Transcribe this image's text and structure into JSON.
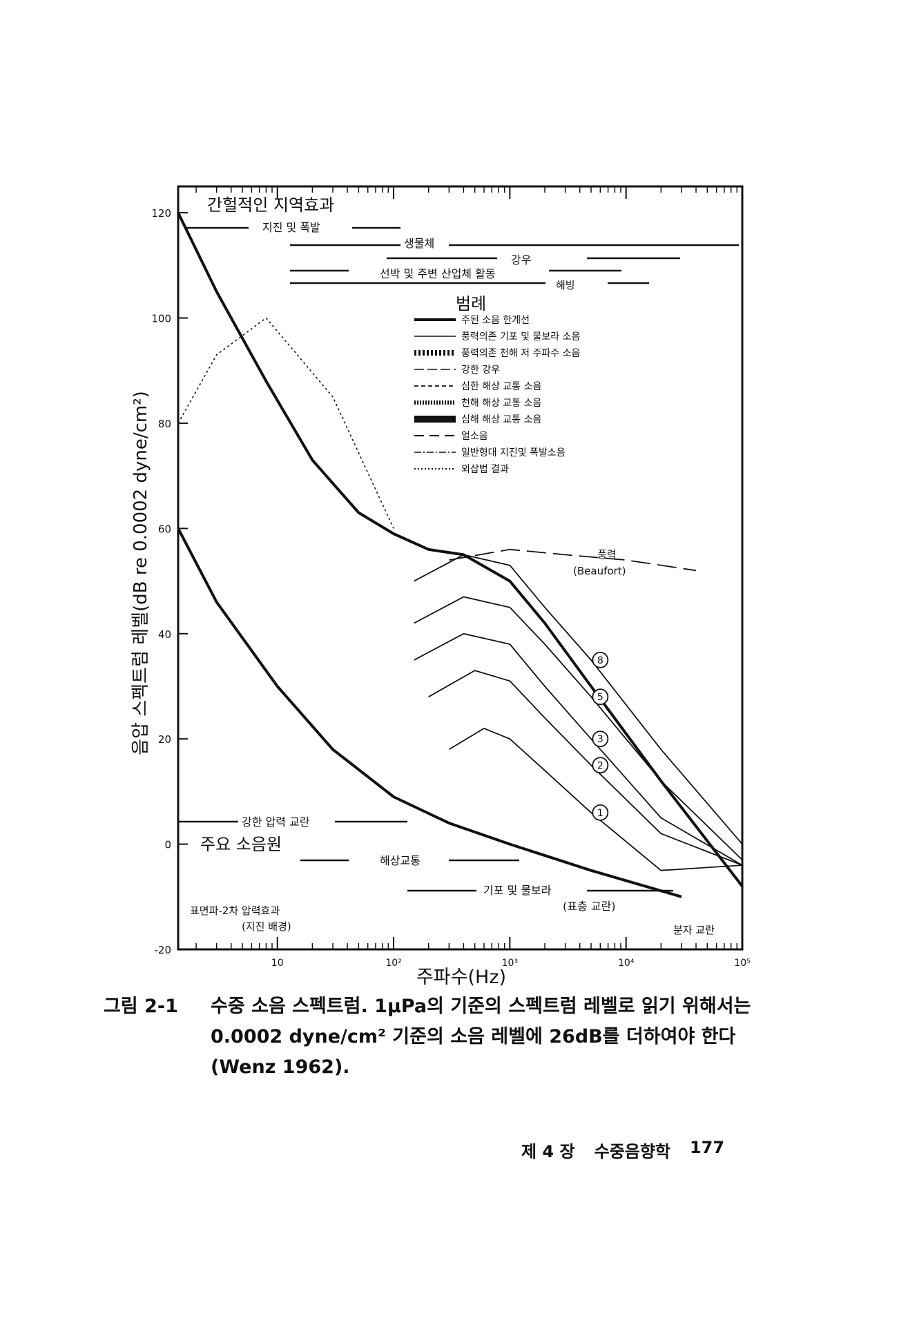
{
  "chart_data": {
    "type": "line",
    "x_scale": "log",
    "xlim": [
      1.4,
      100000
    ],
    "ylim": [
      -20,
      125
    ],
    "xlabel": "주파수(Hz)",
    "ylabel": "음압 스펙트럼 레벨(dB re 0.0002 dyne/cm²)",
    "x_ticks": [
      "10",
      "10²",
      "10³",
      "10⁴",
      "10⁵"
    ],
    "y_ticks": [
      "120",
      "100",
      "80",
      "60",
      "40",
      "20",
      "0",
      "-20"
    ],
    "grid": "none",
    "annotations": {
      "top_title": "간헐적인 지역효과",
      "earthquake": "지진 및 폭발",
      "biological": "생물체",
      "rain": "강우",
      "ships": "선박 및 주변 산업체 활동",
      "spray": "해빙",
      "legend_title": "범례",
      "wind_force": "풍력",
      "beaufort": "(Beaufort)",
      "bottom_title": "주요 소음원",
      "turbulent": "강한 압력 교란",
      "shipping": "해상교통",
      "bubbles": "기포 및 물보라",
      "surface_turb": "(표층 교란)",
      "surface_wave": "표면파-2차 압력효과",
      "seismic": "(지진 배경)",
      "molecular": "분자 교란"
    },
    "legend": [
      "주된 소음 한계선",
      "풍력의존 기포 및 물보라 소음",
      "풍력의존 천해 저 주파수 소음",
      "강한 강우",
      "심한 해상 교통 소음",
      "천해 해상 교통 소음",
      "심해 해상 교통 소음",
      "얼소음",
      "일반형대 지진및 폭발소음",
      "외삽법 결과"
    ],
    "beaufort_labels": [
      "8",
      "5",
      "3",
      "2",
      "1"
    ],
    "series": [
      {
        "name": "주된 소음 한계선",
        "style": "upper-limit",
        "x": [
          1.4,
          3,
          8,
          20,
          50,
          100,
          200,
          400,
          1000,
          2000,
          5000,
          20000,
          100000
        ],
        "y": [
          120,
          105,
          88,
          73,
          63,
          59,
          56,
          55,
          50,
          42,
          30,
          12,
          -8
        ]
      },
      {
        "name": "주된 소음 한계선",
        "style": "lower-limit",
        "x": [
          1.4,
          3,
          10,
          30,
          100,
          300,
          1000,
          5000,
          30000
        ],
        "y": [
          60,
          46,
          30,
          18,
          9,
          4,
          0,
          -5,
          -10
        ]
      },
      {
        "name": "풍력",
        "label": "8",
        "x": [
          150,
          400,
          1000,
          2000,
          5000,
          20000,
          100000
        ],
        "y": [
          50,
          55,
          53,
          45,
          35,
          18,
          0
        ]
      },
      {
        "name": "풍력",
        "label": "5",
        "x": [
          150,
          400,
          1000,
          2000,
          5000,
          20000,
          100000
        ],
        "y": [
          42,
          47,
          45,
          38,
          28,
          12,
          -3
        ]
      },
      {
        "name": "풍력",
        "label": "3",
        "x": [
          150,
          400,
          1000,
          2000,
          5000,
          20000,
          100000
        ],
        "y": [
          35,
          40,
          38,
          30,
          20,
          5,
          -4
        ]
      },
      {
        "name": "풍력",
        "label": "2",
        "x": [
          200,
          500,
          1000,
          2000,
          5000,
          20000,
          100000
        ],
        "y": [
          28,
          33,
          31,
          24,
          15,
          2,
          -4
        ]
      },
      {
        "name": "풍력",
        "label": "1",
        "x": [
          300,
          600,
          1000,
          2000,
          5000,
          20000,
          100000
        ],
        "y": [
          18,
          22,
          20,
          14,
          6,
          -5,
          -4
        ]
      },
      {
        "name": "강한 강우",
        "x": [
          300,
          1000,
          3000,
          10000,
          40000
        ],
        "y": [
          54,
          56,
          55,
          54,
          52
        ]
      },
      {
        "name": "외삽법 결과",
        "x": [
          1.4,
          3,
          8,
          30,
          100
        ],
        "y": [
          80,
          93,
          100,
          85,
          60
        ]
      }
    ]
  },
  "caption": {
    "label": "그림 2-1",
    "text": "수중 소음 스펙트럼. 1μPa의 기준의 스펙트럼 레벨로 읽기 위해서는 0.0002 dyne/cm² 기준의 소음 레벨에 26dB를 더하여야 한다 (Wenz 1962)."
  },
  "footer": {
    "chapter": "제 4 장",
    "title": "수중음향학",
    "page": "177"
  }
}
